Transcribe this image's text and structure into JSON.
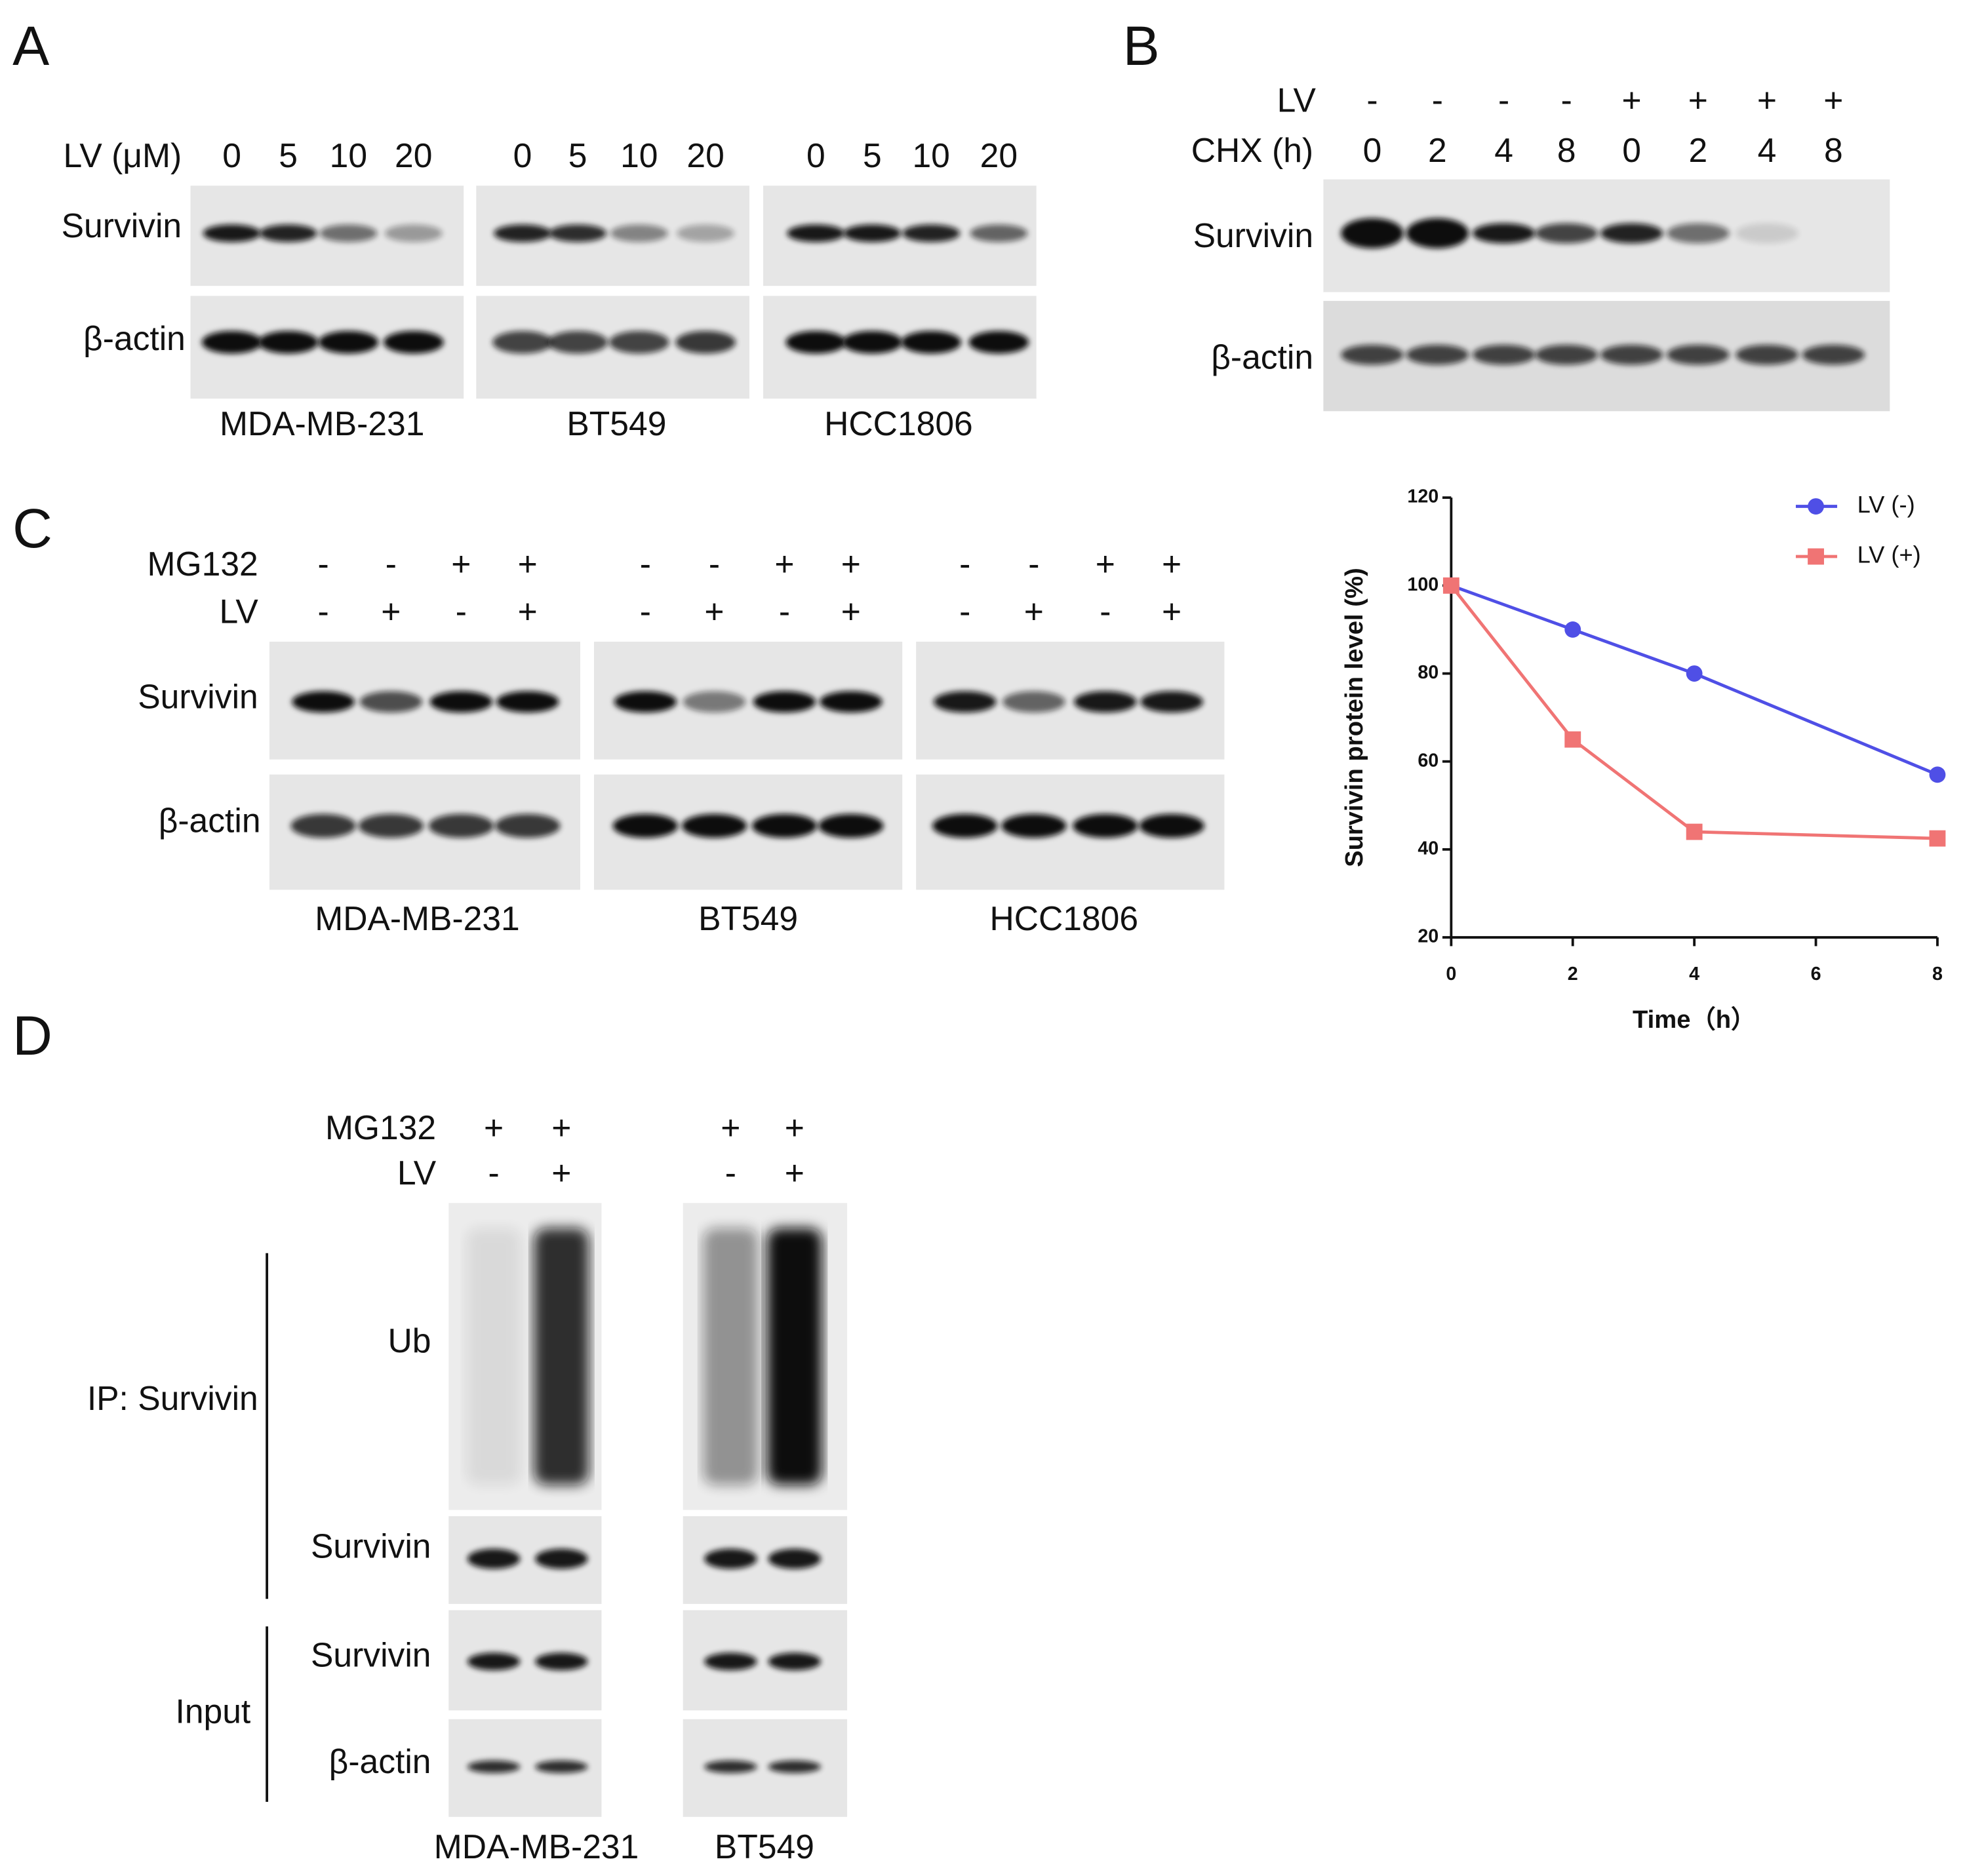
{
  "panel_A": {
    "label": "A",
    "row_header": "LV (μM)",
    "rows": [
      "Survivin",
      "β-actin"
    ],
    "groups": [
      {
        "name": "MDA-MB-231",
        "lanes": [
          "0",
          "5",
          "10",
          "20"
        ]
      },
      {
        "name": "BT549",
        "lanes": [
          "0",
          "5",
          "10",
          "20"
        ]
      },
      {
        "name": "HCC1806",
        "lanes": [
          "0",
          "5",
          "10",
          "20"
        ]
      }
    ]
  },
  "panel_B": {
    "label": "B",
    "row_headers": [
      "LV",
      "CHX (h)"
    ],
    "lanes": [
      [
        "-",
        "-",
        "-",
        "-",
        "+",
        "+",
        "+",
        "+"
      ],
      [
        "0",
        "2",
        "4",
        "8",
        "0",
        "2",
        "4",
        "8"
      ]
    ],
    "rows": [
      "Survivin",
      "β-actin"
    ]
  },
  "panel_C": {
    "label": "C",
    "row_headers": [
      "MG132",
      "LV"
    ],
    "rows": [
      "Survivin",
      "β-actin"
    ],
    "groups": [
      {
        "name": "MDA-MB-231",
        "lanes": [
          [
            "-",
            "-",
            "+",
            "+"
          ],
          [
            "-",
            "+",
            "-",
            "+"
          ]
        ]
      },
      {
        "name": "BT549",
        "lanes": [
          [
            "-",
            "-",
            "+",
            "+"
          ],
          [
            "-",
            "+",
            "-",
            "+"
          ]
        ]
      },
      {
        "name": "HCC1806",
        "lanes": [
          [
            "-",
            "-",
            "+",
            "+"
          ],
          [
            "-",
            "+",
            "-",
            "+"
          ]
        ]
      }
    ]
  },
  "panel_D": {
    "label": "D",
    "row_headers": [
      "MG132",
      "LV"
    ],
    "groups": [
      {
        "name": "MDA-MB-231",
        "lanes": [
          [
            "+",
            "+"
          ],
          [
            "-",
            "+"
          ]
        ]
      },
      {
        "name": "BT549",
        "lanes": [
          [
            "+",
            "+"
          ],
          [
            "-",
            "+"
          ]
        ]
      }
    ],
    "sections": [
      {
        "name": "IP: Survivin",
        "rows": [
          "Ub",
          "Survivin"
        ]
      },
      {
        "name": "Input",
        "rows": [
          "Survivin",
          "β-actin"
        ]
      }
    ]
  },
  "chart_data": {
    "type": "line",
    "x_label": "Time（h）",
    "y_label": "Survivin protein level (%)",
    "x": [
      0,
      2,
      4,
      8
    ],
    "xlim": [
      0,
      8
    ],
    "xticks": [
      0,
      2,
      4,
      6,
      8
    ],
    "ylim": [
      20,
      120
    ],
    "yticks": [
      20,
      40,
      60,
      80,
      100,
      120
    ],
    "series": [
      {
        "name": "LV (-)",
        "color": "#4f4fe6",
        "marker": "circle",
        "values": [
          100,
          90,
          80,
          57
        ]
      },
      {
        "name": "LV (+)",
        "color": "#f07474",
        "marker": "square",
        "values": [
          100,
          65,
          44,
          42.5
        ]
      }
    ]
  }
}
